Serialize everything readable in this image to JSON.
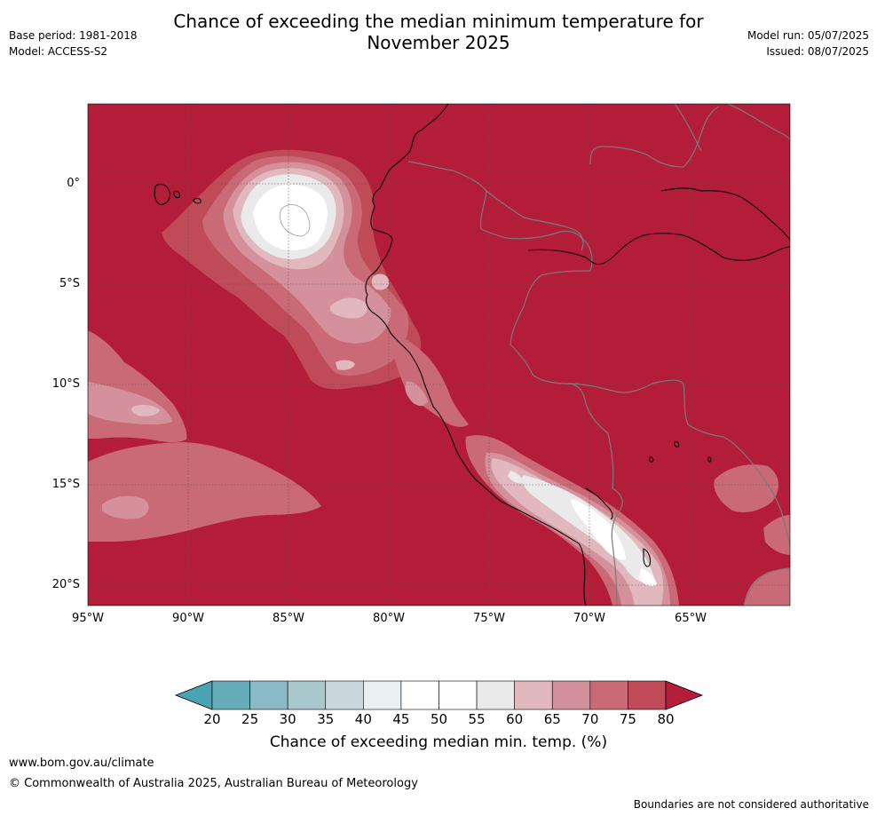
{
  "title": {
    "line1": "Chance of exceeding the median minimum temperature for",
    "line2": "November 2025"
  },
  "meta": {
    "base_period": "Base period: 1981-2018",
    "model": "Model: ACCESS-S2",
    "model_run": "Model run: 05/07/2025",
    "issued": "Issued: 08/07/2025"
  },
  "map": {
    "background_color": "#B31D3A",
    "coastline_color": "#000000",
    "border_color": "#7a7a7a",
    "latitude_labels": [
      "0°",
      "5°S",
      "10°S",
      "15°S",
      "20°S"
    ],
    "longitude_labels": [
      "95°W",
      "90°W",
      "85°W",
      "80°W",
      "75°W",
      "70°W",
      "65°W"
    ]
  },
  "colorbar": {
    "title": "Chance of exceeding median min. temp. (%)",
    "ticks": [
      "20",
      "25",
      "30",
      "35",
      "40",
      "45",
      "50",
      "55",
      "60",
      "65",
      "70",
      "75",
      "80"
    ],
    "colors": [
      "#66ABB8",
      "#8ABAC5",
      "#A8C8CE",
      "#C9D6DB",
      "#EAF0F2",
      "#FFFFFF",
      "#FFFFFF",
      "#EBEAEA",
      "#E0B8BE",
      "#D4919C",
      "#C96A76",
      "#BF4A58"
    ],
    "under_color": "#4AA3B3",
    "over_color": "#B31D3A"
  },
  "footer": {
    "url": "www.bom.gov.au/climate",
    "copyright": "© Commonwealth of Australia 2025, Australian Bureau of Meteorology",
    "note": "Boundaries are not considered authoritative"
  }
}
